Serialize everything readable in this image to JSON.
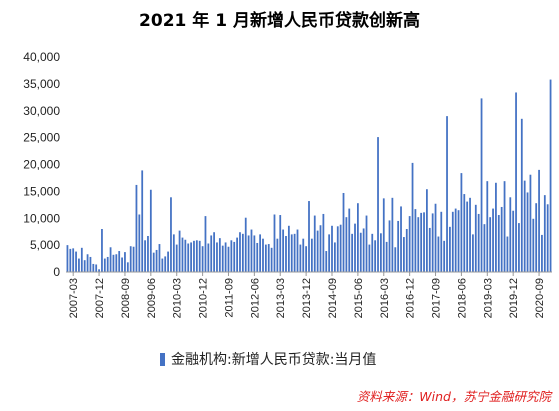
{
  "chart_data": {
    "type": "bar",
    "title": "2021 年 1 月新增人民币贷款创新高",
    "xlabel": "",
    "ylabel": "",
    "ylim": [
      0,
      40000
    ],
    "yticks": [
      "0",
      "5,000",
      "10,000",
      "15,000",
      "20,000",
      "25,000",
      "30,000",
      "35,000",
      "40,000"
    ],
    "xticks": [
      "2007-03",
      "2007-12",
      "2008-09",
      "2009-06",
      "2010-03",
      "2010-12",
      "2011-09",
      "2012-06",
      "2013-03",
      "2013-12",
      "2014-09",
      "2015-06",
      "2016-03",
      "2016-12",
      "2017-09",
      "2018-06",
      "2019-03",
      "2019-12",
      "2020-09"
    ],
    "grid": false,
    "legend_position": "bottom",
    "series": [
      {
        "name": "金融机构:新增人民币贷款:当月值",
        "color": "#4472c4",
        "start": "2007-01",
        "values": [
          5000,
          4300,
          4400,
          3800,
          2500,
          4500,
          2200,
          3300,
          2800,
          1500,
          1400,
          500,
          8000,
          2500,
          2800,
          4600,
          3200,
          3300,
          3900,
          2700,
          3700,
          1800,
          4800,
          4700,
          16200,
          10700,
          18900,
          5900,
          6700,
          15300,
          3600,
          4100,
          5200,
          2500,
          2900,
          3800,
          13900,
          7000,
          5100,
          7700,
          6400,
          6000,
          5300,
          5500,
          5800,
          5900,
          5800,
          4800,
          10400,
          5300,
          6800,
          7400,
          5500,
          6300,
          4900,
          5500,
          4700,
          5900,
          5600,
          6400,
          7400,
          7100,
          10100,
          6800,
          7900,
          6800,
          5400,
          7000,
          6200,
          5100,
          5200,
          4500,
          10700,
          6200,
          10600,
          7900,
          6700,
          8600,
          7000,
          7100,
          7900,
          5100,
          6200,
          4800,
          13200,
          6200,
          10500,
          7700,
          8700,
          10800,
          3900,
          7000,
          8600,
          5500,
          8500,
          8800,
          14700,
          10200,
          11800,
          7100,
          9000,
          12800,
          7300,
          8100,
          10500,
          5100,
          7100,
          5900,
          25100,
          7200,
          13700,
          5600,
          9600,
          13800,
          4600,
          9500,
          12200,
          6500,
          8000,
          10400,
          20300,
          11700,
          10200,
          11000,
          11100,
          15400,
          8200,
          10900,
          12700,
          6600,
          11200,
          5800,
          29000,
          8400,
          11200,
          11800,
          11500,
          18400,
          14500,
          13100,
          13800,
          7000,
          12500,
          10800,
          32300,
          8900,
          16900,
          10200,
          11800,
          16600,
          10600,
          12100,
          16900,
          6600,
          13900,
          11400,
          33400,
          9100,
          28500,
          17000,
          14800,
          18100,
          9900,
          12800,
          19000,
          6900,
          14300,
          12600,
          35800
        ]
      }
    ],
    "legend_label": "金融机构:新增人民币贷款:当月值",
    "source": "资料来源：Wind，苏宁金融研究院"
  }
}
